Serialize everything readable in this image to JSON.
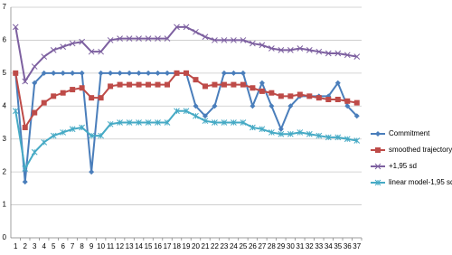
{
  "chart_data": {
    "type": "line",
    "categories": [
      1,
      2,
      3,
      4,
      5,
      6,
      7,
      8,
      9,
      10,
      11,
      12,
      13,
      14,
      15,
      16,
      17,
      18,
      19,
      20,
      21,
      22,
      23,
      24,
      25,
      26,
      27,
      28,
      29,
      30,
      31,
      32,
      33,
      34,
      35,
      36,
      37
    ],
    "ylim": [
      0,
      7
    ],
    "yticks": [
      0,
      1,
      2,
      3,
      4,
      5,
      6,
      7
    ],
    "grid": true,
    "series": [
      {
        "name": "Commitment",
        "color": "#4a7ebb",
        "marker": "diamond",
        "values": [
          5,
          1.7,
          4.7,
          5,
          5,
          5,
          5,
          5,
          2,
          5,
          5,
          5,
          5,
          5,
          5,
          5,
          5,
          5,
          5,
          4,
          3.7,
          4,
          5,
          5,
          5,
          4,
          4.7,
          4,
          3.3,
          4,
          4.3,
          4.3,
          4.3,
          4.3,
          4.7,
          4,
          3.7
        ]
      },
      {
        "name": "smoothed trajectory",
        "color": "#be4b48",
        "marker": "square",
        "values": [
          5,
          3.35,
          3.8,
          4.1,
          4.3,
          4.4,
          4.5,
          4.55,
          4.25,
          4.25,
          4.6,
          4.65,
          4.65,
          4.65,
          4.65,
          4.65,
          4.65,
          5,
          5,
          4.8,
          4.6,
          4.65,
          4.65,
          4.65,
          4.65,
          4.55,
          4.45,
          4.4,
          4.3,
          4.3,
          4.35,
          4.3,
          4.25,
          4.2,
          4.2,
          4.15,
          4.1
        ]
      },
      {
        "name": "+1,95 sd",
        "color": "#7d60a0",
        "marker": "x",
        "values": [
          6.4,
          4.75,
          5.2,
          5.5,
          5.7,
          5.8,
          5.9,
          5.95,
          5.65,
          5.65,
          6,
          6.05,
          6.05,
          6.05,
          6.05,
          6.05,
          6.05,
          6.4,
          6.4,
          6.25,
          6.1,
          6,
          6,
          6,
          6,
          5.9,
          5.85,
          5.75,
          5.7,
          5.7,
          5.75,
          5.7,
          5.65,
          5.6,
          5.6,
          5.55,
          5.5
        ]
      },
      {
        "name": "linear model-1,95 sd",
        "color": "#46aac5",
        "marker": "star",
        "values": [
          3.85,
          2.1,
          2.6,
          2.9,
          3.1,
          3.2,
          3.3,
          3.35,
          3.1,
          3.1,
          3.45,
          3.5,
          3.5,
          3.5,
          3.5,
          3.5,
          3.5,
          3.85,
          3.85,
          3.7,
          3.55,
          3.5,
          3.5,
          3.5,
          3.5,
          3.35,
          3.3,
          3.2,
          3.15,
          3.15,
          3.2,
          3.15,
          3.1,
          3.05,
          3.05,
          3,
          2.95
        ]
      }
    ],
    "legend": "right"
  }
}
